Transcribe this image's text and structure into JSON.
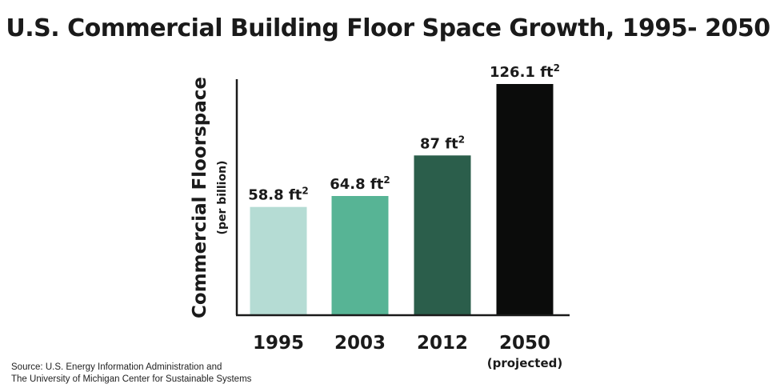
{
  "chart_data": {
    "type": "bar",
    "title": "U.S. Commercial Building Floor Space Growth, 1995- 2050",
    "ylabel": "Commercial Floorspace",
    "ylabel_sub": "(per billion)",
    "xlabel": "",
    "categories": [
      "1995",
      "2003",
      "2012",
      "2050"
    ],
    "category_notes": [
      "",
      "",
      "",
      "(projected)"
    ],
    "values": [
      58.8,
      64.8,
      87,
      126.1
    ],
    "data_labels": [
      "58.8 ft",
      "64.8 ft",
      "87 ft",
      "126.1 ft"
    ],
    "data_label_superscript": "2",
    "colors": [
      "#b5dcd4",
      "#57b495",
      "#2b5e4b",
      "#0b0c0b"
    ],
    "ylim": [
      0,
      126.1
    ],
    "grid": false,
    "legend": "none"
  },
  "source": {
    "line1": "Source: U.S. Energy Information Administration and",
    "line2": "The University of Michigan Center for Sustainable Systems"
  }
}
